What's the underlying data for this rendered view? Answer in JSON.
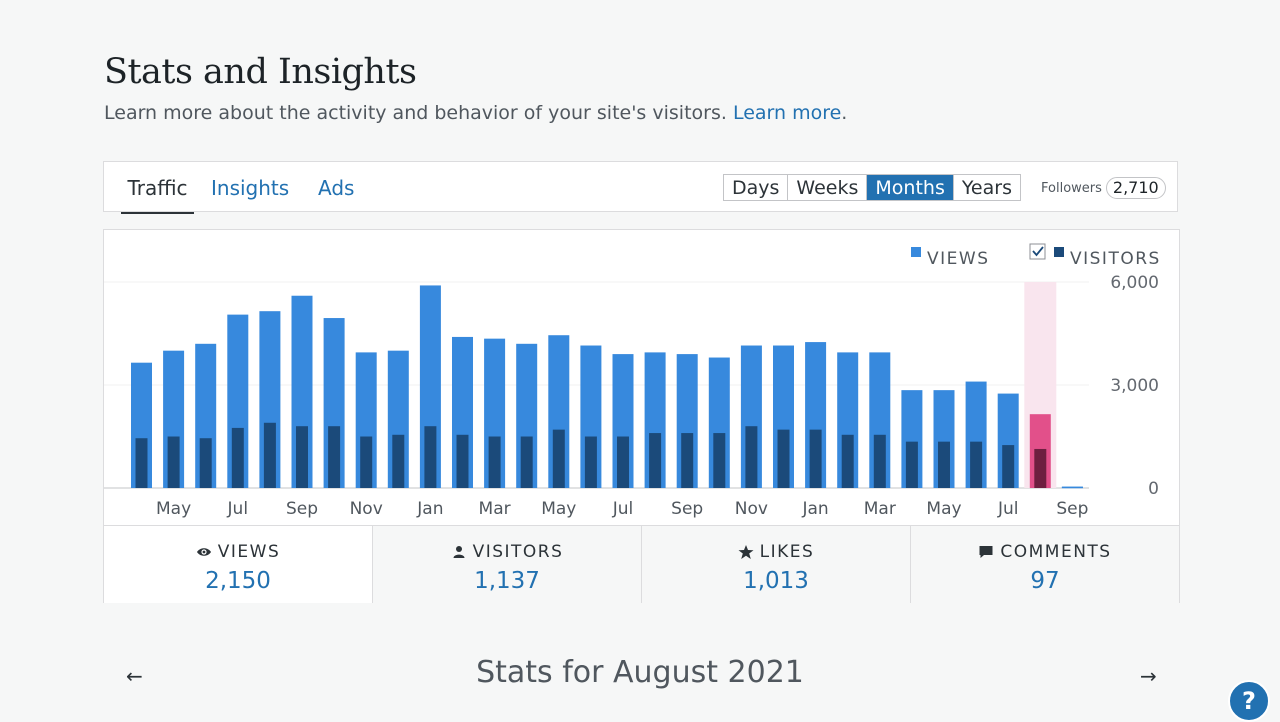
{
  "header": {
    "title": "Stats and Insights",
    "subtitle": "Learn more about the activity and behavior of your site's visitors.",
    "learn_more": "Learn more",
    "period_after_link": "."
  },
  "tabs": [
    {
      "label": "Traffic",
      "active": true
    },
    {
      "label": "Insights",
      "active": false
    },
    {
      "label": "Ads",
      "active": false
    }
  ],
  "periods": [
    {
      "label": "Days",
      "selected": false
    },
    {
      "label": "Weeks",
      "selected": false
    },
    {
      "label": "Months",
      "selected": true
    },
    {
      "label": "Years",
      "selected": false
    }
  ],
  "followers": {
    "label": "Followers",
    "count": "2,710"
  },
  "chart_data": {
    "type": "bar",
    "series": [
      {
        "name": "VIEWS",
        "color": "#3789dd",
        "values": [
          3650,
          4000,
          4200,
          5050,
          5150,
          5600,
          4950,
          3950,
          4000,
          5900,
          4400,
          4350,
          4200,
          4450,
          4150,
          3900,
          3950,
          3900,
          3800,
          4150,
          4150,
          4250,
          3950,
          3950,
          2850,
          2850,
          3100,
          2750,
          2150,
          40
        ]
      },
      {
        "name": "VISITORS",
        "color": "#1b4a7a",
        "checked": true,
        "values": [
          1450,
          1500,
          1450,
          1750,
          1900,
          1800,
          1800,
          1500,
          1550,
          1800,
          1550,
          1500,
          1500,
          1700,
          1500,
          1500,
          1600,
          1600,
          1600,
          1800,
          1700,
          1700,
          1550,
          1550,
          1350,
          1350,
          1350,
          1250,
          1137,
          0
        ]
      }
    ],
    "x_labels": [
      "May",
      "Jul",
      "Sep",
      "Nov",
      "Jan",
      "Mar",
      "May",
      "Jul",
      "Sep",
      "Nov",
      "Jan",
      "Mar",
      "May",
      "Jul",
      "Sep"
    ],
    "y_ticks": [
      "6,000",
      "3,000",
      "0"
    ],
    "ylim": [
      0,
      6000
    ],
    "highlight_index": 28,
    "highlight_color": "#e2508a",
    "highlight_dark_color": "#6e1f40",
    "highlight_band_color": "#f9e5ee"
  },
  "summary": [
    {
      "label": "VIEWS",
      "value": "2,150",
      "icon": "eye-icon"
    },
    {
      "label": "VISITORS",
      "value": "1,137",
      "icon": "person-icon"
    },
    {
      "label": "LIKES",
      "value": "1,013",
      "icon": "star-icon"
    },
    {
      "label": "COMMENTS",
      "value": "97",
      "icon": "comment-icon"
    }
  ],
  "stats_header": "Stats for August 2021",
  "nav": {
    "prev": "←",
    "next": "→"
  },
  "help": "?"
}
